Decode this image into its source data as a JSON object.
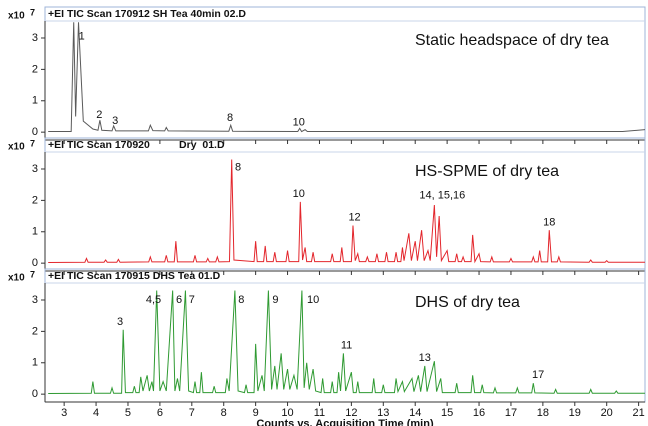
{
  "chart_data": [
    {
      "type": "line",
      "title": "+EI TIC Scan 170912 SH Tea 40min 02.D",
      "label": "Static headspace of dry tea",
      "y_scale": {
        "base": "x10",
        "exponent": "7"
      },
      "xlim": [
        2.4,
        21.2
      ],
      "ylim": [
        -0.25,
        3.35
      ],
      "yticks": [
        0,
        1,
        2,
        3
      ],
      "x": [
        2.5,
        3.22,
        3.3,
        3.36,
        3.45,
        3.6,
        3.9,
        4.06,
        4.12,
        4.18,
        4.5,
        4.55,
        4.62,
        5.64,
        5.7,
        5.78,
        6.15,
        6.2,
        6.26,
        8.16,
        8.22,
        8.28,
        10.32,
        10.38,
        10.44,
        10.55,
        10.62,
        20.5,
        21.2
      ],
      "series": [
        {
          "color": "#5a5a5a",
          "values": [
            0.02,
            0.02,
            3.5,
            0.5,
            3.5,
            0.35,
            0.1,
            0.06,
            0.38,
            0.06,
            0.04,
            0.2,
            0.04,
            0.04,
            0.22,
            0.05,
            0.04,
            0.15,
            0.04,
            0.03,
            0.22,
            0.03,
            0.02,
            0.12,
            0.02,
            0.08,
            0.02,
            0.02,
            0.08
          ]
        }
      ],
      "annotations": [
        {
          "text": "1",
          "x": 3.55,
          "y": 3.05
        },
        {
          "text": "2",
          "x": 4.1,
          "y": 0.55
        },
        {
          "text": "3",
          "x": 4.6,
          "y": 0.35
        },
        {
          "text": "8",
          "x": 8.2,
          "y": 0.45
        },
        {
          "text": "10",
          "x": 10.35,
          "y": 0.3
        }
      ]
    },
    {
      "type": "line",
      "title": "+EI TIC Scan 170920          Dry  01.D",
      "label": "HS-SPME of dry tea",
      "y_scale": {
        "base": "x10",
        "exponent": "7"
      },
      "xlim": [
        2.4,
        21.2
      ],
      "ylim": [
        -0.25,
        3.35
      ],
      "yticks": [
        0,
        1,
        2,
        3
      ],
      "x": [
        2.5,
        3.65,
        3.7,
        3.75,
        4.25,
        4.3,
        4.35,
        4.65,
        4.7,
        4.75,
        5.65,
        5.7,
        5.75,
        6.15,
        6.2,
        6.25,
        6.45,
        6.5,
        6.55,
        7.05,
        7.1,
        7.15,
        7.45,
        7.5,
        7.55,
        7.75,
        7.8,
        7.85,
        8.18,
        8.25,
        8.32,
        8.95,
        9.0,
        9.05,
        9.25,
        9.3,
        9.35,
        9.55,
        9.6,
        9.65,
        9.95,
        10.0,
        10.05,
        10.35,
        10.4,
        10.47,
        10.55,
        10.6,
        10.75,
        10.8,
        10.85,
        11.35,
        11.4,
        11.45,
        11.65,
        11.7,
        11.75,
        12.0,
        12.05,
        12.12,
        12.2,
        12.25,
        12.45,
        12.5,
        12.55,
        12.75,
        12.8,
        12.85,
        13.05,
        13.1,
        13.15,
        13.35,
        13.4,
        13.45,
        13.55,
        13.6,
        13.65,
        13.8,
        13.88,
        14.0,
        14.07,
        14.2,
        14.28,
        14.4,
        14.47,
        14.6,
        14.67,
        14.75,
        14.82,
        15.0,
        15.05,
        15.25,
        15.3,
        15.35,
        15.45,
        15.5,
        15.55,
        15.75,
        15.8,
        15.87,
        16.0,
        16.05,
        16.35,
        16.4,
        16.45,
        16.95,
        17.0,
        17.05,
        17.65,
        17.7,
        17.75,
        17.85,
        17.9,
        17.95,
        18.15,
        18.2,
        18.27,
        18.45,
        18.5,
        18.55,
        19.45,
        19.5,
        19.55,
        19.95,
        20.0,
        20.05,
        21.2
      ],
      "series": [
        {
          "color": "#e3262c",
          "values": [
            0.02,
            0.03,
            0.15,
            0.03,
            0.03,
            0.1,
            0.03,
            0.03,
            0.12,
            0.03,
            0.04,
            0.2,
            0.04,
            0.04,
            0.25,
            0.04,
            0.04,
            0.7,
            0.04,
            0.04,
            0.25,
            0.04,
            0.04,
            0.15,
            0.04,
            0.04,
            0.2,
            0.04,
            0.05,
            3.3,
            0.1,
            0.05,
            0.7,
            0.05,
            0.05,
            0.55,
            0.05,
            0.05,
            0.35,
            0.05,
            0.05,
            0.4,
            0.05,
            0.05,
            1.95,
            0.1,
            0.5,
            0.05,
            0.05,
            0.35,
            0.05,
            0.05,
            0.3,
            0.05,
            0.05,
            0.5,
            0.05,
            0.05,
            1.2,
            0.08,
            0.3,
            0.05,
            0.05,
            0.2,
            0.05,
            0.05,
            0.3,
            0.05,
            0.05,
            0.35,
            0.05,
            0.05,
            0.35,
            0.05,
            0.05,
            0.5,
            0.08,
            0.95,
            0.08,
            0.7,
            0.08,
            1.05,
            0.08,
            0.4,
            0.08,
            1.85,
            0.2,
            1.5,
            0.08,
            0.4,
            0.05,
            0.05,
            0.3,
            0.05,
            0.05,
            0.2,
            0.05,
            0.05,
            0.9,
            0.05,
            0.3,
            0.05,
            0.04,
            0.2,
            0.04,
            0.04,
            0.15,
            0.04,
            0.04,
            0.2,
            0.04,
            0.04,
            0.4,
            0.04,
            0.04,
            1.05,
            0.04,
            0.04,
            0.2,
            0.04,
            0.03,
            0.1,
            0.03,
            0.03,
            0.08,
            0.03,
            0.03
          ]
        }
      ],
      "annotations": [
        {
          "text": "8",
          "x": 8.45,
          "y": 3.05
        },
        {
          "text": "10",
          "x": 10.35,
          "y": 2.2
        },
        {
          "text": "12",
          "x": 12.1,
          "y": 1.45
        },
        {
          "text": "14, 15,16",
          "x": 14.85,
          "y": 2.15
        },
        {
          "text": "18",
          "x": 18.2,
          "y": 1.3
        }
      ]
    },
    {
      "type": "line",
      "title": "+EI TIC Scan 170915 DHS Tea 01.D",
      "label": "DHS of dry tea",
      "y_scale": {
        "base": "x10",
        "exponent": "7"
      },
      "xlim": [
        2.4,
        21.2
      ],
      "ylim": [
        -0.25,
        3.35
      ],
      "yticks": [
        0,
        1,
        2,
        3
      ],
      "xticks": [
        3,
        4,
        5,
        6,
        7,
        8,
        9,
        10,
        11,
        12,
        13,
        14,
        15,
        16,
        17,
        18,
        19,
        20,
        21
      ],
      "xlabel": "Counts vs. Acquisition Time (min)",
      "x": [
        2.5,
        3.85,
        3.9,
        3.95,
        4.45,
        4.5,
        4.55,
        4.8,
        4.85,
        4.92,
        5.15,
        5.2,
        5.25,
        5.35,
        5.4,
        5.47,
        5.6,
        5.67,
        5.75,
        5.8,
        5.9,
        6.0,
        6.1,
        6.2,
        6.4,
        6.47,
        6.55,
        6.62,
        6.8,
        6.9,
        7.05,
        7.1,
        7.15,
        7.25,
        7.3,
        7.35,
        7.65,
        7.7,
        7.75,
        8.05,
        8.1,
        8.17,
        8.35,
        8.45,
        8.65,
        8.7,
        8.75,
        8.95,
        9.0,
        9.07,
        9.2,
        9.27,
        9.4,
        9.5,
        9.6,
        9.67,
        9.8,
        9.88,
        10.0,
        10.07,
        10.2,
        10.3,
        10.45,
        10.52,
        10.6,
        10.68,
        10.8,
        10.88,
        11.05,
        11.1,
        11.15,
        11.35,
        11.4,
        11.45,
        11.55,
        11.6,
        11.66,
        11.75,
        11.82,
        12.0,
        12.06,
        12.15,
        12.2,
        12.25,
        12.65,
        12.7,
        12.75,
        12.95,
        13.0,
        13.05,
        13.35,
        13.4,
        13.46,
        13.6,
        13.66,
        13.9,
        13.96,
        14.1,
        14.17,
        14.3,
        14.37,
        14.6,
        14.67,
        14.8,
        14.85,
        15.25,
        15.3,
        15.35,
        15.75,
        15.8,
        15.86,
        16.05,
        16.1,
        16.15,
        16.45,
        16.5,
        16.55,
        17.15,
        17.2,
        17.25,
        17.65,
        17.7,
        17.75,
        18.35,
        18.4,
        18.45,
        19.45,
        19.5,
        19.55,
        20.25,
        20.3,
        20.35,
        21.2
      ],
      "series": [
        {
          "color": "#2f9a32",
          "values": [
            0.02,
            0.03,
            0.4,
            0.03,
            0.03,
            0.2,
            0.03,
            0.03,
            2.05,
            0.05,
            0.05,
            0.25,
            0.05,
            0.05,
            0.55,
            0.1,
            0.6,
            0.1,
            0.4,
            0.1,
            3.3,
            0.1,
            0.4,
            0.1,
            3.3,
            0.1,
            0.5,
            0.1,
            3.3,
            0.1,
            0.05,
            0.4,
            0.05,
            0.05,
            0.7,
            0.05,
            0.05,
            0.25,
            0.05,
            0.05,
            0.5,
            0.1,
            3.3,
            0.1,
            0.05,
            0.3,
            0.05,
            0.05,
            1.6,
            0.1,
            0.6,
            0.1,
            3.3,
            0.15,
            0.9,
            0.15,
            1.3,
            0.15,
            0.8,
            0.15,
            0.6,
            0.15,
            3.3,
            0.2,
            1.0,
            0.15,
            0.8,
            0.1,
            0.05,
            0.5,
            0.05,
            0.05,
            0.4,
            0.05,
            0.05,
            0.7,
            0.1,
            1.3,
            0.1,
            0.7,
            0.05,
            0.05,
            0.4,
            0.05,
            0.05,
            0.5,
            0.05,
            0.05,
            0.3,
            0.05,
            0.05,
            0.5,
            0.08,
            0.4,
            0.08,
            0.5,
            0.08,
            0.6,
            0.08,
            0.9,
            0.08,
            1.05,
            0.08,
            0.5,
            0.05,
            0.05,
            0.35,
            0.05,
            0.05,
            0.6,
            0.05,
            0.05,
            0.3,
            0.05,
            0.04,
            0.2,
            0.04,
            0.04,
            0.2,
            0.04,
            0.04,
            0.35,
            0.04,
            0.03,
            0.15,
            0.03,
            0.03,
            0.15,
            0.03,
            0.03,
            0.1,
            0.03,
            0.03
          ]
        }
      ],
      "annotations": [
        {
          "text": "3",
          "x": 4.75,
          "y": 2.3
        },
        {
          "text": "4,5",
          "x": 5.8,
          "y": 3.0
        },
        {
          "text": "6",
          "x": 6.6,
          "y": 3.0
        },
        {
          "text": "7",
          "x": 7.0,
          "y": 3.0
        },
        {
          "text": "8",
          "x": 8.55,
          "y": 3.0
        },
        {
          "text": "9",
          "x": 9.62,
          "y": 3.0
        },
        {
          "text": "10",
          "x": 10.8,
          "y": 3.0
        },
        {
          "text": "11",
          "x": 11.85,
          "y": 1.55
        },
        {
          "text": "13",
          "x": 14.3,
          "y": 1.15
        },
        {
          "text": "17",
          "x": 17.85,
          "y": 0.6
        }
      ]
    }
  ]
}
